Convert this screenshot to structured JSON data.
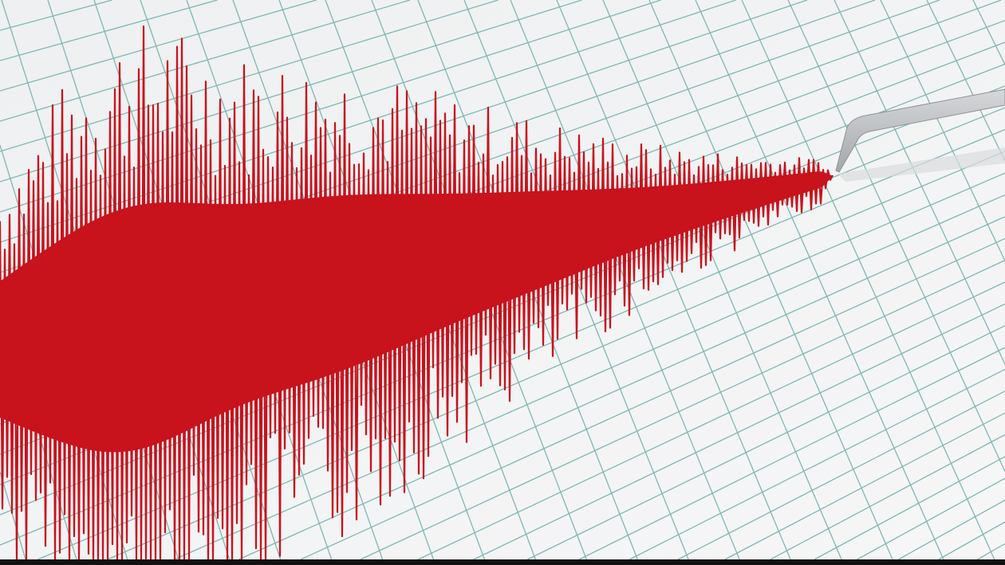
{
  "image": {
    "subject": "seismograph-trace",
    "colors": {
      "paper": "#f1f2f3",
      "grid": "#7fb7b3",
      "trace": "#c8121c",
      "stylus": "#b9bcbf"
    }
  }
}
